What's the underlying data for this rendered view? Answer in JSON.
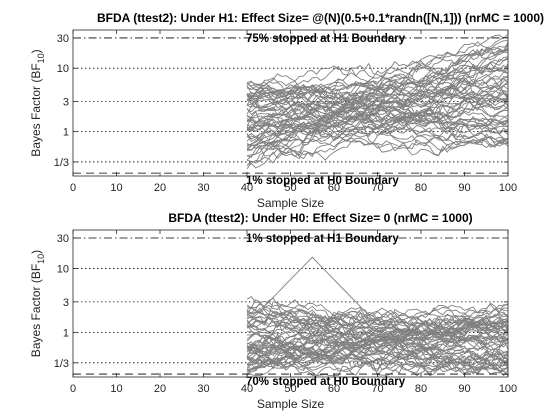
{
  "chart_data": [
    {
      "type": "line",
      "title": "BFDA (ttest2): Under H1: Effect Size= @(N)(0.5+0.1*randn([N,1])) (nrMC = 1000)",
      "xlabel": "Sample Size",
      "ylabel_main": "Bayes Factor (BF",
      "ylabel_sub": "10",
      "ylabel_close": ")",
      "xlim": [
        0,
        100
      ],
      "ylim": [
        0.2,
        40
      ],
      "yscale": "log",
      "xticks": [
        "0",
        "10",
        "20",
        "30",
        "40",
        "50",
        "60",
        "70",
        "80",
        "90",
        "100"
      ],
      "yticks": [
        "1/3",
        "1",
        "3",
        "10",
        "30"
      ],
      "ytick_values": [
        0.3333,
        1,
        3,
        10,
        30
      ],
      "dotted_gridlines_y": [
        0.3333,
        1,
        3,
        10
      ],
      "h1_boundary": 30,
      "h0_boundary": 0.2222,
      "upper_annotation": "75% stopped at H1 Boundary",
      "lower_annotation": "1% stopped at H0 Boundary",
      "line_color": "#808080",
      "trajectories": {
        "x_start": 40,
        "x_end": 100,
        "count": 60,
        "initial_range": [
          0.25,
          6
        ],
        "final_range": [
          0.6,
          30
        ]
      }
    },
    {
      "type": "line",
      "title": "BFDA (ttest2): Under H0: Effect Size= 0 (nrMC = 1000)",
      "xlabel": "Sample Size",
      "ylabel_main": "Bayes Factor (BF",
      "ylabel_sub": "10",
      "ylabel_close": ")",
      "xlim": [
        0,
        100
      ],
      "ylim": [
        0.2,
        40
      ],
      "yscale": "log",
      "xticks": [
        "0",
        "10",
        "20",
        "30",
        "40",
        "50",
        "60",
        "70",
        "80",
        "90",
        "100"
      ],
      "yticks": [
        "1/3",
        "1",
        "3",
        "10",
        "30"
      ],
      "ytick_values": [
        0.3333,
        1,
        3,
        10,
        30
      ],
      "dotted_gridlines_y": [
        0.3333,
        1,
        3,
        10
      ],
      "h1_boundary": 30,
      "h0_boundary": 0.2222,
      "upper_annotation": "1% stopped at H1 Boundary",
      "lower_annotation": "70% stopped at H0 Boundary",
      "line_color": "#808080",
      "trajectories": {
        "x_start": 40,
        "x_end": 100,
        "count": 60,
        "initial_range": [
          0.22,
          3
        ],
        "final_range": [
          0.22,
          3
        ],
        "peak": {
          "x": 55,
          "y": 15
        }
      }
    }
  ]
}
